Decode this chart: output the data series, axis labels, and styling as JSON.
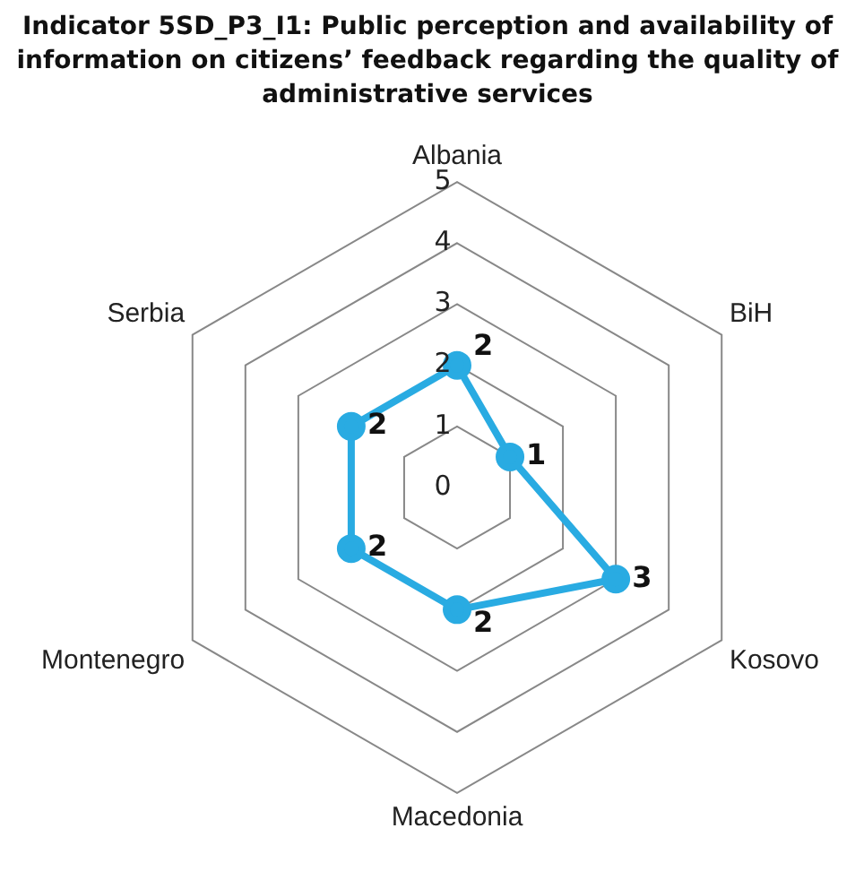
{
  "chart_data": {
    "type": "radar",
    "title": "Indicator 5SD_P3_I1: Public perception and availability of information on citizens’ feedback regarding the quality of administrative services",
    "categories": [
      "Albania",
      "BiH",
      "Kosovo",
      "Macedonia",
      "Montenegro",
      "Serbia"
    ],
    "series": [
      {
        "color": "#29abe2",
        "values": [
          2,
          1,
          3,
          2,
          2,
          2
        ]
      }
    ],
    "ylim": [
      0,
      5
    ],
    "yticks": [
      0,
      1,
      2,
      3,
      4,
      5
    ],
    "grid": true,
    "legend": false,
    "data_labels": true,
    "marker": "circle"
  }
}
